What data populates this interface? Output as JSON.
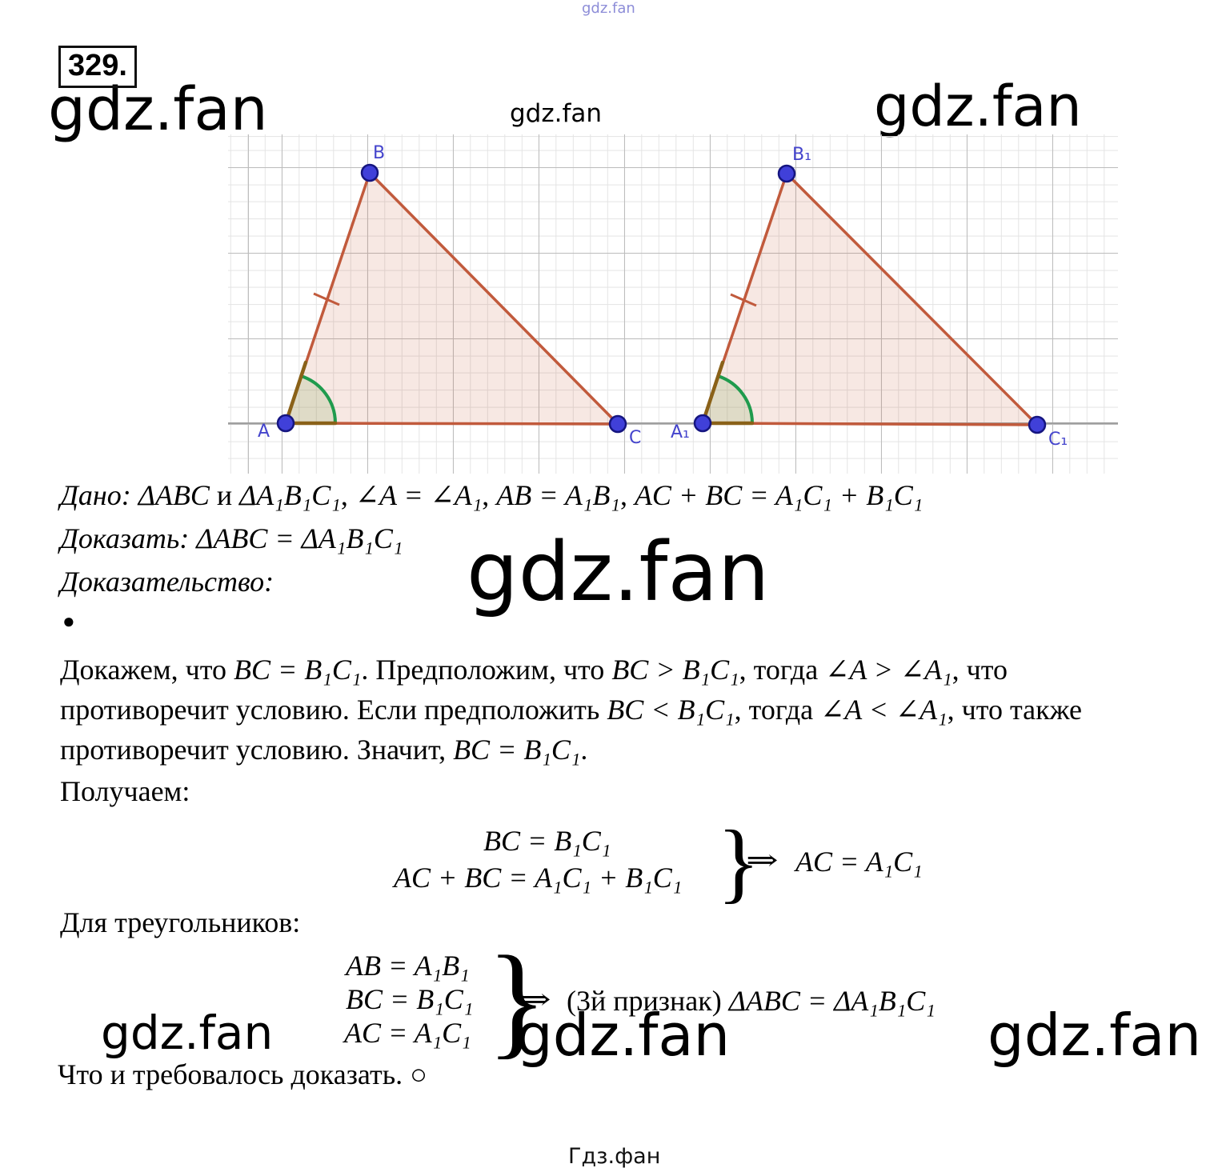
{
  "page": {
    "problem_number": "329."
  },
  "watermarks": {
    "main": "gdz.fan",
    "top_tiny": "gdz.fan",
    "bottom_brand": "Гдз.фан"
  },
  "figure": {
    "labels": {
      "A": "A",
      "B": "B",
      "C": "C",
      "A1": "A₁",
      "B1": "B₁",
      "C1": "C₁"
    },
    "colors": {
      "edge": "#c15a3c",
      "fill_tint": "#f7e4dc",
      "point": "#4040d9",
      "point_border": "#151580",
      "angle_arc": "#1f9b4d",
      "angle_legs": "#8a6118",
      "vertex_label": "#4444cc",
      "grid_minor": "#e4e4e4",
      "grid_major": "#bdbdbd"
    }
  },
  "statement": {
    "dano": [
      {
        "t": "Дано: ",
        "i": 1
      },
      {
        "t": "ΔABC",
        "i": 1
      },
      {
        "t": " и ",
        "i": 0
      },
      {
        "t": "ΔA₁B₁C₁",
        "i": 1
      },
      {
        "t": ",  ",
        "i": 0
      },
      {
        "t": "∠A = ∠A₁",
        "i": 1
      },
      {
        "t": ",  ",
        "i": 0
      },
      {
        "t": "AB = A₁B₁",
        "i": 1
      },
      {
        "t": ",  ",
        "i": 0
      },
      {
        "t": "AC + BC = A₁C₁ + B₁C₁",
        "i": 1
      }
    ],
    "dokazat": [
      {
        "t": "Доказать: ",
        "i": 1
      },
      {
        "t": "ΔABC = ΔA₁B₁C₁",
        "i": 1
      }
    ],
    "dokazatelstvo": [
      {
        "t": "Доказательство:",
        "i": 1
      }
    ]
  },
  "proof": {
    "bullet": "●",
    "line1": [
      {
        "t": "Докажем, что ",
        "i": 0
      },
      {
        "t": "BC = B₁C₁",
        "i": 1
      },
      {
        "t": ". Предположим, что ",
        "i": 0
      },
      {
        "t": "BC > B₁C₁",
        "i": 1
      },
      {
        "t": ", тогда ",
        "i": 0
      },
      {
        "t": "∠A > ∠A₁",
        "i": 1
      },
      {
        "t": ", что",
        "i": 0
      }
    ],
    "line2": [
      {
        "t": "противоречит условию. Если предположить ",
        "i": 0
      },
      {
        "t": "BC < B₁C₁",
        "i": 1
      },
      {
        "t": ", тогда ",
        "i": 0
      },
      {
        "t": "∠A < ∠A₁",
        "i": 1
      },
      {
        "t": ", что также",
        "i": 0
      }
    ],
    "line3": [
      {
        "t": "противоречит условию. Значит, ",
        "i": 0
      },
      {
        "t": "BC = B₁C₁",
        "i": 1
      },
      {
        "t": ".",
        "i": 0
      }
    ],
    "poluchaem": "Получаем:",
    "system1": {
      "row1": "BC = B₁C₁",
      "row2": "AC + BC = A₁C₁ + B₁C₁",
      "brace": "}",
      "arrow": "⇒",
      "result": "AC = A₁C₁"
    },
    "dlya": "Для треугольников:",
    "system2": {
      "row1": "AB = A₁B₁",
      "row2": "BC = B₁C₁",
      "row3": "AC = A₁C₁",
      "brace": "}",
      "arrow": "⇒",
      "result": [
        {
          "t": "(3й признак) ",
          "i": 0
        },
        {
          "t": "ΔABC = ΔA₁B₁C₁",
          "i": 1
        }
      ]
    },
    "final": [
      {
        "t": "Что и требовалось доказать. ",
        "i": 0
      },
      {
        "t": "○",
        "i": 0
      }
    ]
  }
}
